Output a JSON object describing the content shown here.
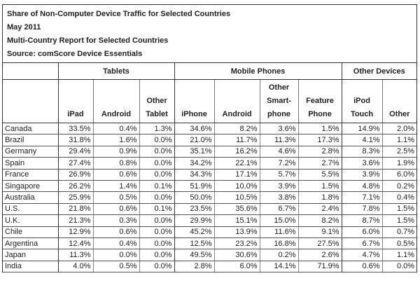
{
  "titles": [
    "Share of Non-Computer Device Traffic for Selected Countries",
    "May 2011",
    "Multi-Country Report for Selected Countries",
    "Source: comScore Device Essentials"
  ],
  "chart_data": {
    "type": "table",
    "groups": [
      "Tablets",
      "Mobile Phones",
      "Other Devices"
    ],
    "columns": [
      "iPad",
      "Android",
      "Other Tablet",
      "iPhone",
      "Android",
      "Other Smart-phone",
      "Feature Phone",
      "iPod Touch",
      "Other"
    ],
    "rows": [
      {
        "country": "Canada",
        "values": [
          "33.5%",
          "0.4%",
          "1.3%",
          "34.6%",
          "8.2%",
          "3.6%",
          "1.5%",
          "14.9%",
          "2.0%"
        ]
      },
      {
        "country": "Brazil",
        "values": [
          "31.8%",
          "1.6%",
          "0.0%",
          "21.0%",
          "11.7%",
          "11.3%",
          "17.3%",
          "4.1%",
          "1.1%"
        ]
      },
      {
        "country": "Germany",
        "values": [
          "29.4%",
          "0.9%",
          "0.0%",
          "35.1%",
          "16.2%",
          "4.6%",
          "2.8%",
          "8.3%",
          "2.5%"
        ]
      },
      {
        "country": "Spain",
        "values": [
          "27.4%",
          "0.8%",
          "0.0%",
          "34.2%",
          "22.1%",
          "7.2%",
          "2.7%",
          "3.6%",
          "1.9%"
        ]
      },
      {
        "country": "France",
        "values": [
          "26.9%",
          "0.6%",
          "0.0%",
          "34.3%",
          "17.1%",
          "5.7%",
          "5.5%",
          "3.9%",
          "6.0%"
        ]
      },
      {
        "country": "Singapore",
        "values": [
          "26.2%",
          "1.4%",
          "0.1%",
          "51.9%",
          "10.0%",
          "3.9%",
          "1.5%",
          "4.8%",
          "0.2%"
        ]
      },
      {
        "country": "Australia",
        "values": [
          "25.9%",
          "0.5%",
          "0.0%",
          "50.0%",
          "10.5%",
          "3.8%",
          "1.8%",
          "7.1%",
          "0.4%"
        ]
      },
      {
        "country": "U.S.",
        "values": [
          "21.8%",
          "0.6%",
          "0.1%",
          "23.5%",
          "35.6%",
          "6.7%",
          "2.4%",
          "7.8%",
          "1.5%"
        ]
      },
      {
        "country": "U.K.",
        "values": [
          "21.3%",
          "0.3%",
          "0.0%",
          "29.9%",
          "15.1%",
          "15.0%",
          "8.2%",
          "8.7%",
          "1.5%"
        ]
      },
      {
        "country": "Chile",
        "values": [
          "12.9%",
          "0.6%",
          "0.0%",
          "45.2%",
          "13.9%",
          "11.6%",
          "9.1%",
          "6.0%",
          "0.7%"
        ]
      },
      {
        "country": "Argentina",
        "values": [
          "12.4%",
          "0.4%",
          "0.0%",
          "12.5%",
          "23.2%",
          "16.8%",
          "27.5%",
          "6.7%",
          "0.5%"
        ]
      },
      {
        "country": "Japan",
        "values": [
          "11.3%",
          "0.0%",
          "0.0%",
          "49.5%",
          "30.6%",
          "0.2%",
          "2.6%",
          "4.7%",
          "1.1%"
        ]
      },
      {
        "country": "India",
        "values": [
          "4.0%",
          "0.5%",
          "0.0%",
          "2.8%",
          "6.0%",
          "14.1%",
          "71.9%",
          "0.6%",
          "0.0%"
        ]
      }
    ]
  }
}
